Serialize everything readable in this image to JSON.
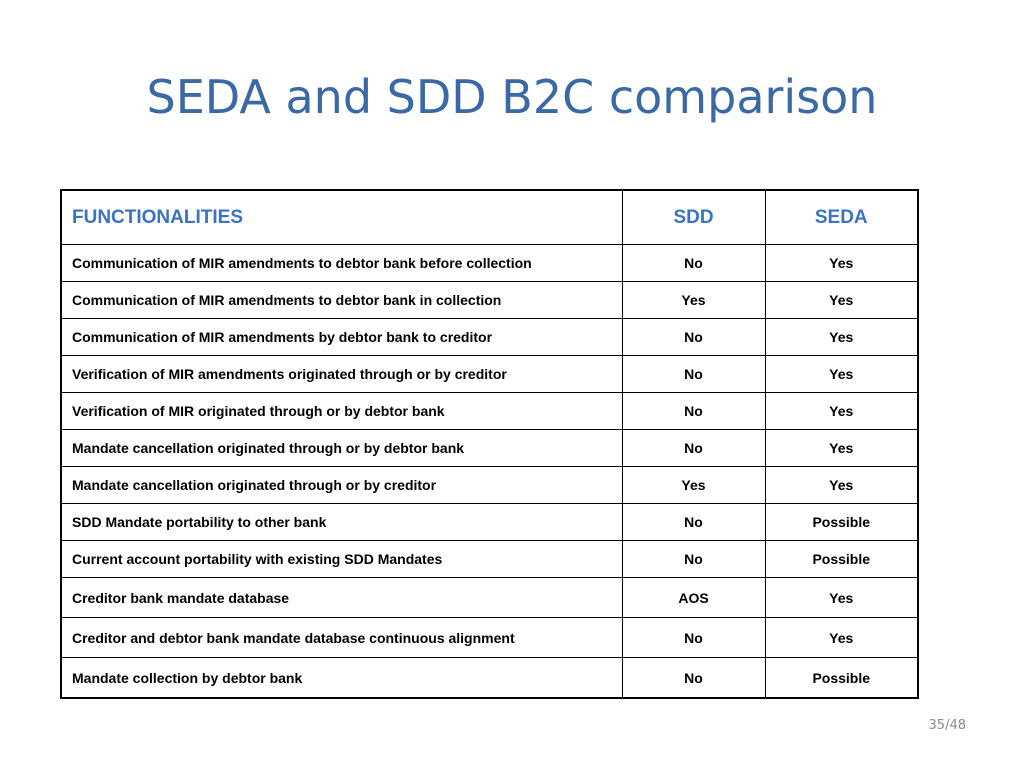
{
  "title": "SEDA and SDD B2C comparison",
  "table": {
    "headers": [
      "FUNCTIONALITIES",
      "SDD",
      "SEDA"
    ],
    "rows": [
      [
        "Communication of MIR amendments to debtor bank before collection",
        "No",
        "Yes"
      ],
      [
        "Communication of MIR amendments to debtor bank in collection",
        "Yes",
        "Yes"
      ],
      [
        "Communication of MIR amendments by debtor bank to creditor",
        "No",
        "Yes"
      ],
      [
        "Verification of MIR amendments originated through or by creditor",
        "No",
        "Yes"
      ],
      [
        "Verification of MIR originated through or by debtor bank",
        "No",
        "Yes"
      ],
      [
        "Mandate cancellation originated through or by debtor bank",
        "No",
        "Yes"
      ],
      [
        "Mandate cancellation originated through or by creditor",
        "Yes",
        "Yes"
      ],
      [
        "SDD Mandate portability to other bank",
        "No",
        "Possible"
      ],
      [
        "Current account portability with existing SDD Mandates",
        "No",
        "Possible"
      ],
      [
        "Creditor bank mandate database",
        "AOS",
        "Yes"
      ],
      [
        "Creditor and debtor bank mandate database continuous alignment",
        "No",
        "Yes"
      ],
      [
        "Mandate collection by debtor bank",
        "No",
        "Possible"
      ]
    ]
  },
  "page_number": "35/48",
  "colors": {
    "title": "#3a69a6",
    "header_text": "#3a73c4",
    "page_number": "#8a8a8a"
  }
}
